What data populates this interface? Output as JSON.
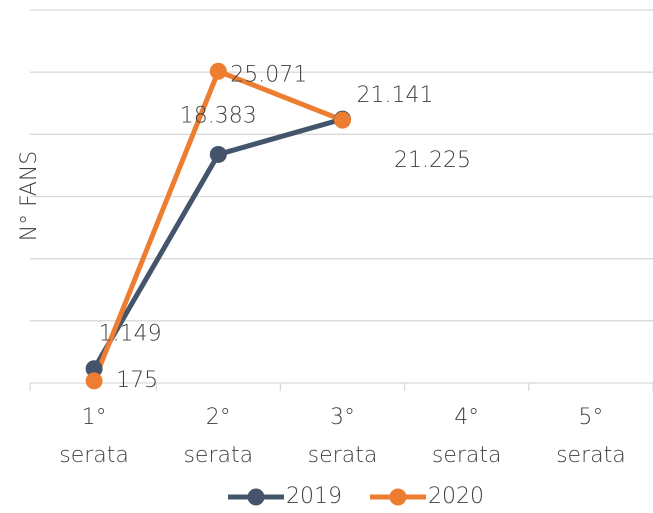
{
  "chart_data": {
    "type": "line",
    "y_axis_label": "N° FANS",
    "categories": [
      "1° serata",
      "2° serata",
      "3° serata",
      "4° serata",
      "5° serata"
    ],
    "series": [
      {
        "name": "2019",
        "color": "#44546a",
        "values": [
          1149,
          18383,
          21225,
          null,
          null
        ],
        "value_labels": [
          "1.149",
          "18.383",
          "21.225",
          null,
          null
        ]
      },
      {
        "name": "2020",
        "color": "#ed7d31",
        "values": [
          175,
          25071,
          21141,
          null,
          null
        ],
        "value_labels": [
          "175",
          "25.071",
          "21.141",
          null,
          null
        ]
      }
    ],
    "ylim": [
      0,
      30000
    ],
    "yticks": [
      0,
      5000,
      10000,
      15000,
      20000,
      25000,
      30000
    ],
    "grid": true,
    "legend": "bottom"
  }
}
